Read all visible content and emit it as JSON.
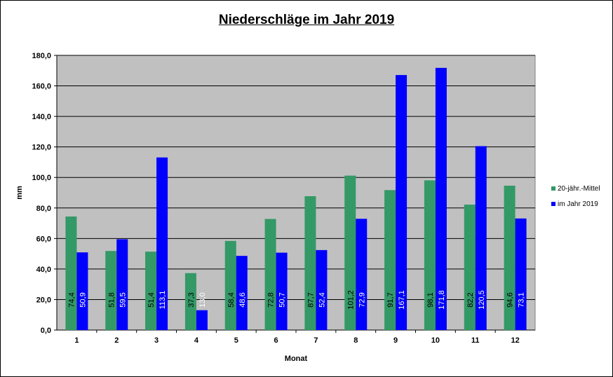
{
  "chart_data": {
    "type": "bar",
    "title": "Niederschläge im Jahr 2019",
    "xlabel": "Monat",
    "ylabel": "mm",
    "categories": [
      "1",
      "2",
      "3",
      "4",
      "5",
      "6",
      "7",
      "8",
      "9",
      "10",
      "11",
      "12"
    ],
    "ylim": [
      0,
      180
    ],
    "yticks": [
      "0,0",
      "20,0",
      "40,0",
      "60,0",
      "80,0",
      "100,0",
      "120,0",
      "140,0",
      "160,0",
      "180,0"
    ],
    "grid": true,
    "legend_position": "right",
    "series": [
      {
        "name": "20-jähr.-Mittel",
        "color": "#339966",
        "values": [
          74.4,
          51.8,
          51.4,
          37.3,
          58.4,
          72.8,
          87.7,
          101.2,
          91.7,
          98.1,
          82.2,
          94.6
        ],
        "labels": [
          "74,4",
          "51,8",
          "51,4",
          "37,3",
          "58,4",
          "72,8",
          "87,7",
          "101,2",
          "91,7",
          "98,1",
          "82,2",
          "94,6"
        ],
        "label_color": "#000000"
      },
      {
        "name": "im Jahr 2019",
        "color": "#0000FF",
        "values": [
          50.9,
          59.5,
          113.1,
          13.0,
          48.6,
          50.7,
          52.4,
          72.9,
          167.1,
          171.8,
          120.5,
          73.1
        ],
        "labels": [
          "50,9",
          "59,5",
          "113,1",
          "13,0",
          "48,6",
          "50,7",
          "52,4",
          "72,9",
          "167,1",
          "171,8",
          "120,5",
          "73,1"
        ],
        "label_color": "#ffffff"
      }
    ],
    "plot_background": "#C0C0C0"
  }
}
